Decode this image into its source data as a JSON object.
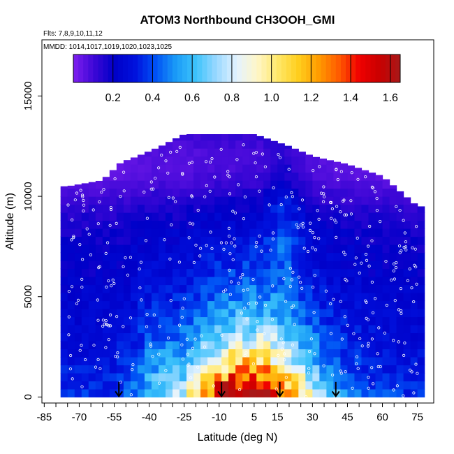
{
  "chart_data": {
    "type": "heatmap",
    "title": "ATOM3 Northbound CH3OOH_GMI",
    "flights_note": "Flts: 7,8,9,10,11,12",
    "dates_note": "MMDD: 1014,1017,1019,1020,1023,1025",
    "xlabel": "Latitude (deg N)",
    "ylabel": "Altitude (m)",
    "x_ticks": [
      "-85",
      "-70",
      "-55",
      "-40",
      "-25",
      "-10",
      "5",
      "15",
      "30",
      "45",
      "60",
      "75"
    ],
    "x_tick_values": [
      -85,
      -70,
      -55,
      -40,
      -25,
      -10,
      5,
      15,
      30,
      45,
      60,
      75
    ],
    "x_minor_step": 5,
    "xlim": [
      -86,
      82
    ],
    "y_ticks": [
      "0",
      "5000",
      "10000",
      "15000"
    ],
    "y_tick_values": [
      0,
      5000,
      10000,
      15000
    ],
    "ylim": [
      -300,
      17800
    ],
    "colorbar": {
      "ticks": [
        "0.2",
        "0.4",
        "0.6",
        "0.8",
        "1.0",
        "1.2",
        "1.4",
        "1.6"
      ],
      "tick_values": [
        0.2,
        0.4,
        0.6,
        0.8,
        1.0,
        1.2,
        1.4,
        1.6
      ],
      "range": [
        0.0,
        1.65
      ],
      "colors": [
        "#7f1fef",
        "#3d07d6",
        "#0000c8",
        "#0010dc",
        "#0050f5",
        "#1a9af7",
        "#3dc3fb",
        "#9ad8ff",
        "#e4f3ff",
        "#fff6c8",
        "#ffe86a",
        "#ffcf1e",
        "#ff9c00",
        "#ff5a00",
        "#f00000",
        "#c80000",
        "#a81919"
      ]
    },
    "profile_markers_lat": [
      -53,
      -9,
      16,
      40
    ],
    "envelope": [
      [
        -75,
        10500
      ],
      [
        -60,
        10800
      ],
      [
        -52,
        11700
      ],
      [
        -45,
        12000
      ],
      [
        -35,
        12500
      ],
      [
        -25,
        13100
      ],
      [
        -10,
        13100
      ],
      [
        5,
        13100
      ],
      [
        20,
        12500
      ],
      [
        30,
        12000
      ],
      [
        45,
        11600
      ],
      [
        60,
        11000
      ],
      [
        70,
        10000
      ],
      [
        75,
        9500
      ]
    ],
    "grid": false,
    "legend": "colorbar-top"
  }
}
